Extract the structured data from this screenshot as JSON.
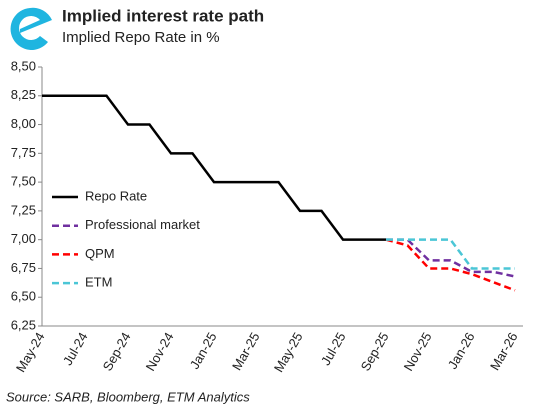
{
  "chart_data": {
    "type": "line",
    "title": "Implied interest rate path",
    "subtitle": "Implied Repo Rate in %",
    "source": "Source: SARB, Bloomberg, ETM Analytics",
    "categories": [
      "May-24",
      null,
      "Jul-24",
      null,
      "Sep-24",
      null,
      "Nov-24",
      null,
      "Jan-25",
      null,
      "Mar-25",
      null,
      "May-25",
      null,
      "Jul-25",
      null,
      "Sep-25",
      null,
      "Nov-25",
      null,
      "Jan-26",
      null,
      "Mar-26"
    ],
    "series": [
      {
        "name": "Repo Rate",
        "color": "#000000",
        "dash": false,
        "values": [
          8.25,
          8.25,
          8.25,
          8.25,
          8.0,
          8.0,
          7.75,
          7.75,
          7.5,
          7.5,
          7.5,
          7.5,
          7.25,
          7.25,
          7.0,
          7.0,
          7.0,
          null,
          null,
          null,
          null,
          null,
          null
        ]
      },
      {
        "name": "Professional market",
        "color": "#7030a0",
        "dash": true,
        "values": [
          null,
          null,
          null,
          null,
          null,
          null,
          null,
          null,
          null,
          null,
          null,
          null,
          null,
          null,
          null,
          null,
          7.0,
          7.0,
          6.82,
          6.82,
          6.72,
          6.72,
          6.68
        ]
      },
      {
        "name": "QPM",
        "color": "#ff0000",
        "dash": true,
        "values": [
          null,
          null,
          null,
          null,
          null,
          null,
          null,
          null,
          null,
          null,
          null,
          null,
          null,
          null,
          null,
          null,
          7.0,
          6.95,
          6.75,
          6.75,
          6.7,
          6.63,
          6.56
        ]
      },
      {
        "name": "ETM",
        "color": "#4bc6d6",
        "dash": true,
        "values": [
          null,
          null,
          null,
          null,
          null,
          null,
          null,
          null,
          null,
          null,
          null,
          null,
          null,
          null,
          null,
          null,
          7.0,
          7.0,
          7.0,
          7.0,
          6.75,
          6.75,
          6.75
        ]
      }
    ],
    "ylim": [
      6.25,
      8.5
    ],
    "yticks": [
      {
        "value": 6.25,
        "label": "6,25"
      },
      {
        "value": 6.5,
        "label": "6,50"
      },
      {
        "value": 6.75,
        "label": "6,75"
      },
      {
        "value": 7.0,
        "label": "7,00"
      },
      {
        "value": 7.25,
        "label": "7,25"
      },
      {
        "value": 7.5,
        "label": "7,50"
      },
      {
        "value": 7.75,
        "label": "7,75"
      },
      {
        "value": 8.0,
        "label": "8,00"
      },
      {
        "value": 8.25,
        "label": "8,25"
      },
      {
        "value": 8.5,
        "label": "8,50"
      }
    ],
    "grid": false,
    "legend": "left"
  }
}
